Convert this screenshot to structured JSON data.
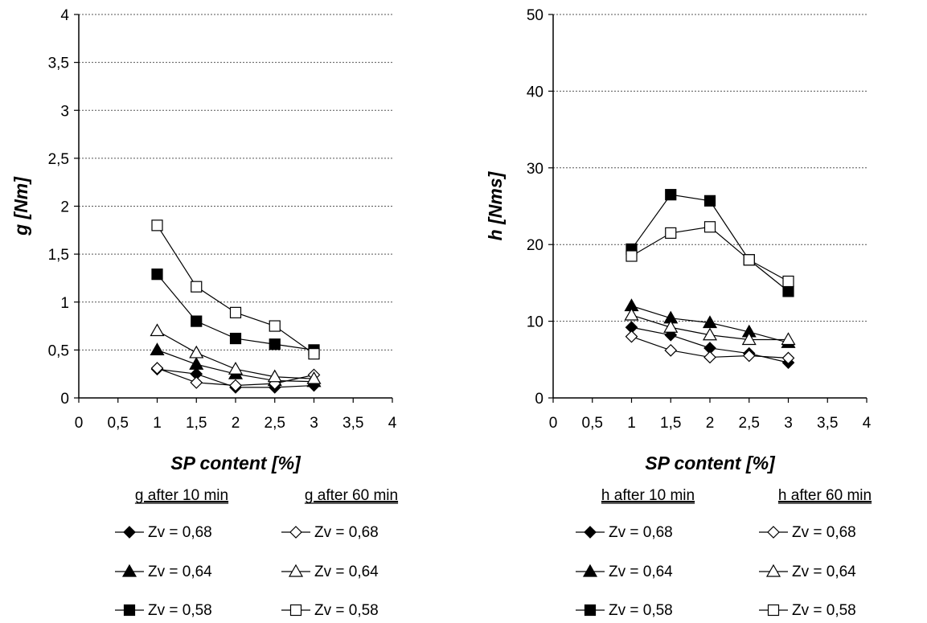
{
  "chart_data": [
    {
      "type": "line",
      "xlabel": "SP content [%]",
      "ylabel": "g [Nm]",
      "xlim": [
        0,
        4
      ],
      "ylim": [
        0,
        4
      ],
      "x_ticks": [
        "0",
        "0,5",
        "1",
        "1,5",
        "2",
        "2,5",
        "3",
        "3,5",
        "4"
      ],
      "y_ticks": [
        "0",
        "0,5",
        "1",
        "1,5",
        "2",
        "2,5",
        "3",
        "3,5",
        "4"
      ],
      "grid": "horizontal dotted",
      "legend_headers": [
        "g after 10 min",
        "g after 60 min"
      ],
      "series": [
        {
          "name": "Zv = 0,68",
          "group": "g after 10 min",
          "marker": "diamond",
          "fill": "filled",
          "x": [
            1,
            1.5,
            2,
            2.5,
            3
          ],
          "y": [
            0.3,
            0.25,
            0.11,
            0.11,
            0.13
          ]
        },
        {
          "name": "Zv = 0,64",
          "group": "g after 10 min",
          "marker": "triangle",
          "fill": "filled",
          "x": [
            1,
            1.5,
            2,
            2.5,
            3
          ],
          "y": [
            0.5,
            0.35,
            0.25,
            0.18,
            0.17
          ]
        },
        {
          "name": "Zv = 0,58",
          "group": "g after 10 min",
          "marker": "square",
          "fill": "filled",
          "x": [
            1,
            1.5,
            2,
            2.5,
            3
          ],
          "y": [
            1.29,
            0.8,
            0.62,
            0.56,
            0.5
          ]
        },
        {
          "name": "Zv = 0,68",
          "group": "g after 60 min",
          "marker": "diamond",
          "fill": "open",
          "x": [
            1,
            1.5,
            2,
            2.5,
            3
          ],
          "y": [
            0.31,
            0.16,
            0.13,
            0.15,
            0.24
          ]
        },
        {
          "name": "Zv = 0,64",
          "group": "g after 60 min",
          "marker": "triangle",
          "fill": "open",
          "x": [
            1,
            1.5,
            2,
            2.5,
            3
          ],
          "y": [
            0.7,
            0.47,
            0.3,
            0.22,
            0.2
          ]
        },
        {
          "name": "Zv = 0,58",
          "group": "g after 60 min",
          "marker": "square",
          "fill": "open",
          "x": [
            1,
            1.5,
            2,
            2.5,
            3
          ],
          "y": [
            1.8,
            1.16,
            0.89,
            0.75,
            0.46
          ]
        }
      ]
    },
    {
      "type": "line",
      "xlabel": "SP content [%]",
      "ylabel": "h [Nms]",
      "xlim": [
        0,
        4
      ],
      "ylim": [
        0,
        50
      ],
      "x_ticks": [
        "0",
        "0,5",
        "1",
        "1,5",
        "2",
        "2,5",
        "3",
        "3,5",
        "4"
      ],
      "y_ticks": [
        "0",
        "10",
        "20",
        "30",
        "40",
        "50"
      ],
      "grid": "horizontal dotted",
      "legend_headers": [
        "h after 10 min",
        "h after 60 min"
      ],
      "series": [
        {
          "name": "Zv = 0,68",
          "group": "h after 10 min",
          "marker": "diamond",
          "fill": "filled",
          "x": [
            1,
            1.5,
            2,
            2.5,
            3
          ],
          "y": [
            9.2,
            8.2,
            6.5,
            5.8,
            4.6
          ]
        },
        {
          "name": "Zv = 0,64",
          "group": "h after 10 min",
          "marker": "triangle",
          "fill": "filled",
          "x": [
            1,
            1.5,
            2,
            2.5,
            3
          ],
          "y": [
            12,
            10.4,
            9.8,
            8.6,
            7.2
          ]
        },
        {
          "name": "Zv = 0,58",
          "group": "h after 10 min",
          "marker": "square",
          "fill": "filled",
          "x": [
            1,
            1.5,
            2,
            2.5,
            3
          ],
          "y": [
            19.4,
            26.5,
            25.7,
            18,
            13.9
          ]
        },
        {
          "name": "Zv = 0,68",
          "group": "h after 60 min",
          "marker": "diamond",
          "fill": "open",
          "x": [
            1,
            1.5,
            2,
            2.5,
            3
          ],
          "y": [
            8,
            6.2,
            5.3,
            5.5,
            5.2
          ]
        },
        {
          "name": "Zv = 0,64",
          "group": "h after 60 min",
          "marker": "triangle",
          "fill": "open",
          "x": [
            1,
            1.5,
            2,
            2.5,
            3
          ],
          "y": [
            10.8,
            9.2,
            8.2,
            7.6,
            7.6
          ]
        },
        {
          "name": "Zv = 0,58",
          "group": "h after 60 min",
          "marker": "square",
          "fill": "open",
          "x": [
            1,
            1.5,
            2,
            2.5,
            3
          ],
          "y": [
            18.5,
            21.5,
            22.3,
            18,
            15.2
          ]
        }
      ]
    }
  ]
}
